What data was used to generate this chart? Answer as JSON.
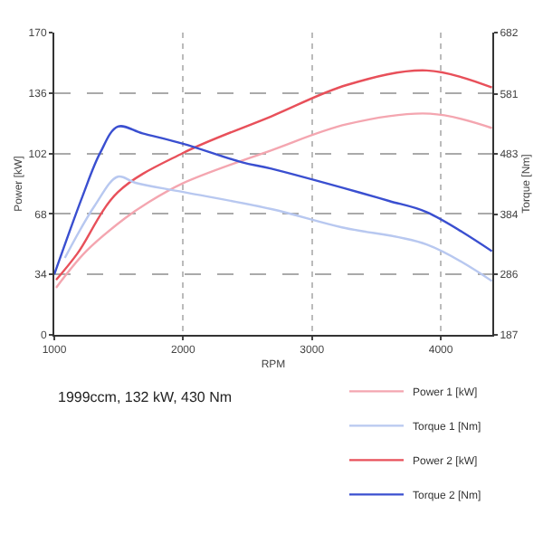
{
  "chart_data": {
    "type": "line",
    "xlabel": "RPM",
    "ylabel": "Power [kW]",
    "y2label": "Torque [Nm]",
    "xlim": [
      1000,
      4400
    ],
    "xticks": [
      1000,
      2000,
      3000,
      4000
    ],
    "ylim": [
      0,
      170
    ],
    "yticks": [
      0,
      34,
      68,
      102,
      136,
      170
    ],
    "y2lim": [
      187,
      682
    ],
    "y2ticks": [
      187,
      286,
      384,
      483,
      581,
      682
    ],
    "grid": true,
    "legend": "bottom right",
    "line_style": "solid",
    "annotations": [
      "1999ccm, 132 kW, 430 Nm"
    ],
    "series": [
      {
        "name": "Power 1 [kW]",
        "color": "#f4a6b0",
        "x": [
          1014,
          1247,
          1548,
          1726,
          2000,
          2685,
          3274,
          3918,
          4397
        ],
        "values": [
          26.5,
          47,
          65.5,
          74.3,
          85.3,
          103.8,
          118.5,
          124.4,
          116.3
        ]
      },
      {
        "name": "Torque 1 [Nm]",
        "color": "#b8c8f0",
        "axis": "y2",
        "x": [
          1082,
          1315,
          1493,
          1630,
          2000,
          2685,
          3233,
          3890,
          4397
        ],
        "values": [
          313,
          399,
          446,
          436,
          421,
          393,
          363,
          335,
          275
        ]
      },
      {
        "name": "Power 2 [kW]",
        "color": "#e8505a",
        "x": [
          1014,
          1178,
          1493,
          2000,
          2685,
          3274,
          3890,
          4397
        ],
        "values": [
          30.9,
          45.6,
          80.2,
          102.3,
          122.9,
          140.6,
          148.7,
          139.1
        ]
      },
      {
        "name": "Torque 2 [Nm]",
        "color": "#3a4fd0",
        "axis": "y2",
        "x": [
          1000,
          1219,
          1356,
          1493,
          1685,
          2000,
          2452,
          2685,
          3370,
          3603,
          3890,
          4397
        ],
        "values": [
          286,
          414,
          485,
          528,
          517,
          500,
          470,
          459,
          420,
          406,
          388,
          324
        ]
      }
    ]
  }
}
